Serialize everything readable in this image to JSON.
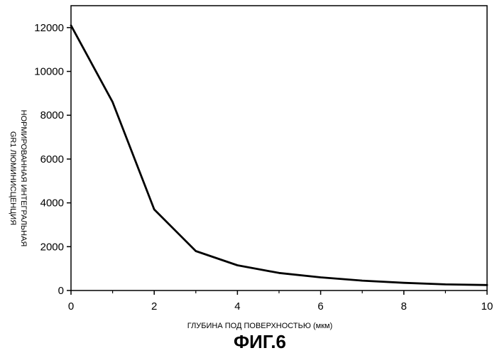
{
  "chart_data": {
    "type": "line",
    "title": "",
    "figure_label": "ФИГ.6",
    "xlabel": "ГЛУБИНА ПОД ПОВЕРХНОСТЬЮ (мкм)",
    "ylabel_line1": "НОРМИРОВАННАЯ ИНТЕГРАЛЬНАЯ",
    "ylabel_line2": "GR1 ЛЮМИНИСЦЕНЦИЯ",
    "xlim": [
      0,
      10
    ],
    "ylim": [
      0,
      13000
    ],
    "x_ticks": [
      "0",
      "2",
      "4",
      "6",
      "8",
      "10"
    ],
    "y_ticks": [
      "0",
      "2000",
      "4000",
      "6000",
      "8000",
      "10000",
      "12000"
    ],
    "x_tick_values": [
      0,
      2,
      4,
      6,
      8,
      10
    ],
    "y_tick_values": [
      0,
      2000,
      4000,
      6000,
      8000,
      10000,
      12000
    ],
    "grid": false,
    "legend": "none",
    "line_color": "#000000",
    "series": [
      {
        "x": [
          0,
          1,
          2,
          3,
          4,
          5,
          6,
          7,
          8,
          9,
          10
        ],
        "y": [
          12100,
          8600,
          3700,
          1800,
          1150,
          800,
          600,
          450,
          350,
          280,
          250
        ]
      }
    ]
  }
}
